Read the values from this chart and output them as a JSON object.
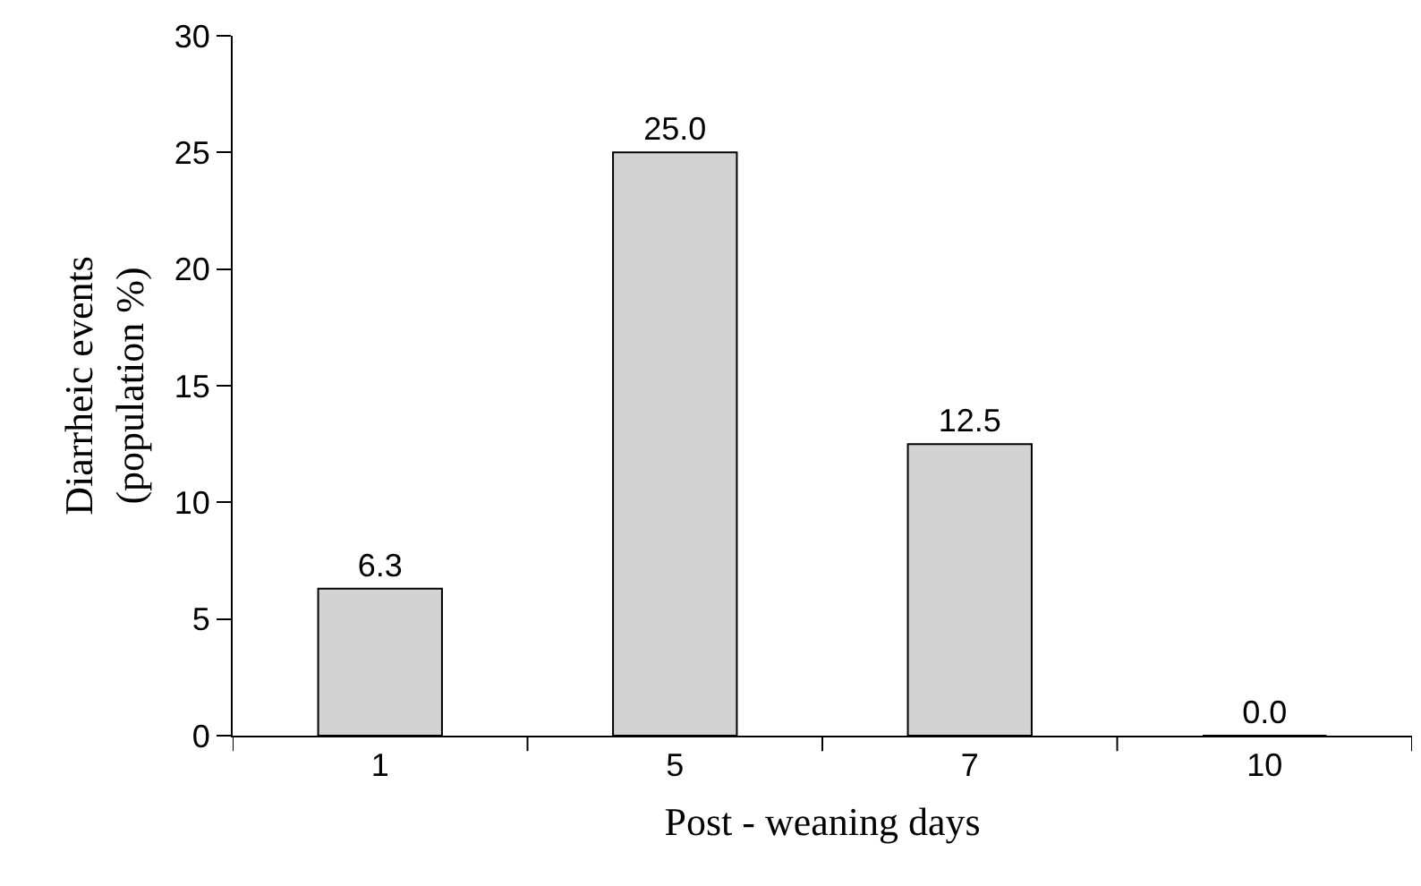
{
  "chart_data": {
    "type": "bar",
    "categories": [
      "1",
      "5",
      "7",
      "10"
    ],
    "values": [
      6.3,
      25.0,
      12.5,
      0.0
    ],
    "value_labels": [
      "6.3",
      "25.0",
      "12.5",
      "0.0"
    ],
    "color": "#d3d3d3",
    "xlabel": "Post - weaning days",
    "ylabel": "Diarrheic events\n(population %)",
    "ylim": [
      0,
      30
    ],
    "yticks": [
      0,
      5,
      10,
      15,
      20,
      25,
      30
    ],
    "grid": false,
    "legend": false
  }
}
